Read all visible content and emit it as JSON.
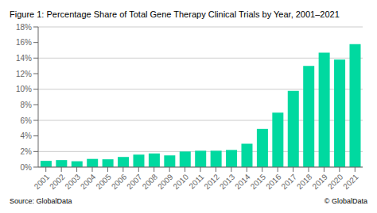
{
  "chart_data": {
    "type": "bar",
    "title": "Figure 1: Percentage Share of Total Gene Therapy Clinical Trials by Year, 2001–2021",
    "annotations": [
      "Source: GlobalData",
      "© GlobalData"
    ],
    "categories": [
      "2001",
      "2002",
      "2003",
      "2004",
      "2005",
      "2006",
      "2007",
      "2008",
      "2009",
      "2010",
      "2011",
      "2012",
      "2013",
      "2014",
      "2015",
      "2016",
      "2017",
      "2018",
      "2019",
      "2020",
      "2021"
    ],
    "values": [
      0.008,
      0.009,
      0.0075,
      0.0105,
      0.01,
      0.013,
      0.016,
      0.0175,
      0.015,
      0.02,
      0.021,
      0.021,
      0.022,
      0.03,
      0.049,
      0.07,
      0.098,
      0.13,
      0.147,
      0.138,
      0.158
    ],
    "color": "#00d9a0",
    "ylim": [
      0,
      0.18
    ],
    "yticks": [
      {
        "value": 0,
        "label": "0%"
      },
      {
        "value": 0.02,
        "label": "2%"
      },
      {
        "value": 0.04,
        "label": "4%"
      },
      {
        "value": 0.06,
        "label": "6%"
      },
      {
        "value": 0.08,
        "label": "8%"
      },
      {
        "value": 0.1,
        "label": "10%"
      },
      {
        "value": 0.12,
        "label": "12%"
      },
      {
        "value": 0.14,
        "label": "14%"
      },
      {
        "value": 0.16,
        "label": "16%"
      },
      {
        "value": 0.18,
        "label": "18%"
      }
    ],
    "grid": true
  }
}
